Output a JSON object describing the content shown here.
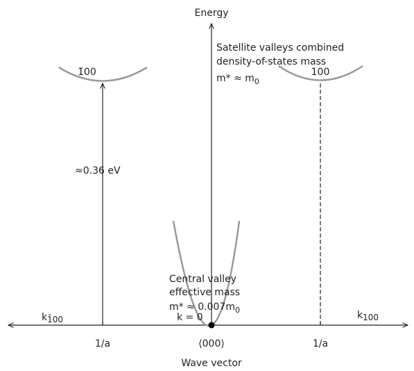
{
  "axis": {
    "y_label": "Energy",
    "x_label": "Wave vector"
  },
  "satellite": {
    "lines": [
      "Satellite valleys combined",
      "density-of-states mass"
    ],
    "mass": {
      "text": "m* ≈ m",
      "sub": "0"
    }
  },
  "valleys": {
    "left": "1̄00",
    "right": "100"
  },
  "gap": "≈0.36 eV",
  "central": {
    "lines": [
      "Central valley",
      "effective mass"
    ],
    "mass": {
      "text": "m* ≈ 0.007m",
      "sub": "0"
    }
  },
  "k_labels": {
    "left": {
      "base": "k",
      "sub": "1̄00"
    },
    "center": "k = 0",
    "right": {
      "base": "k",
      "sub": "100"
    }
  },
  "x_ticks": {
    "left": "1/a",
    "center": "⟨000⟩",
    "right": "1/a"
  }
}
